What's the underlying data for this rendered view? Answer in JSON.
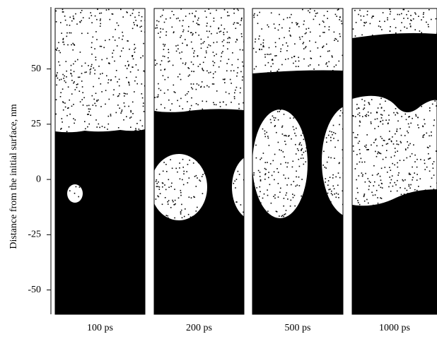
{
  "figure": {
    "y_axis": {
      "label": "Distance from the initial surface, nm",
      "ylim": [
        -61,
        78
      ],
      "yticks": [
        50,
        25,
        0,
        -25,
        -50
      ]
    },
    "panels": [
      {
        "label": "100 ps"
      },
      {
        "label": "200 ps"
      },
      {
        "label": "500 ps"
      },
      {
        "label": "1000 ps"
      }
    ]
  }
}
